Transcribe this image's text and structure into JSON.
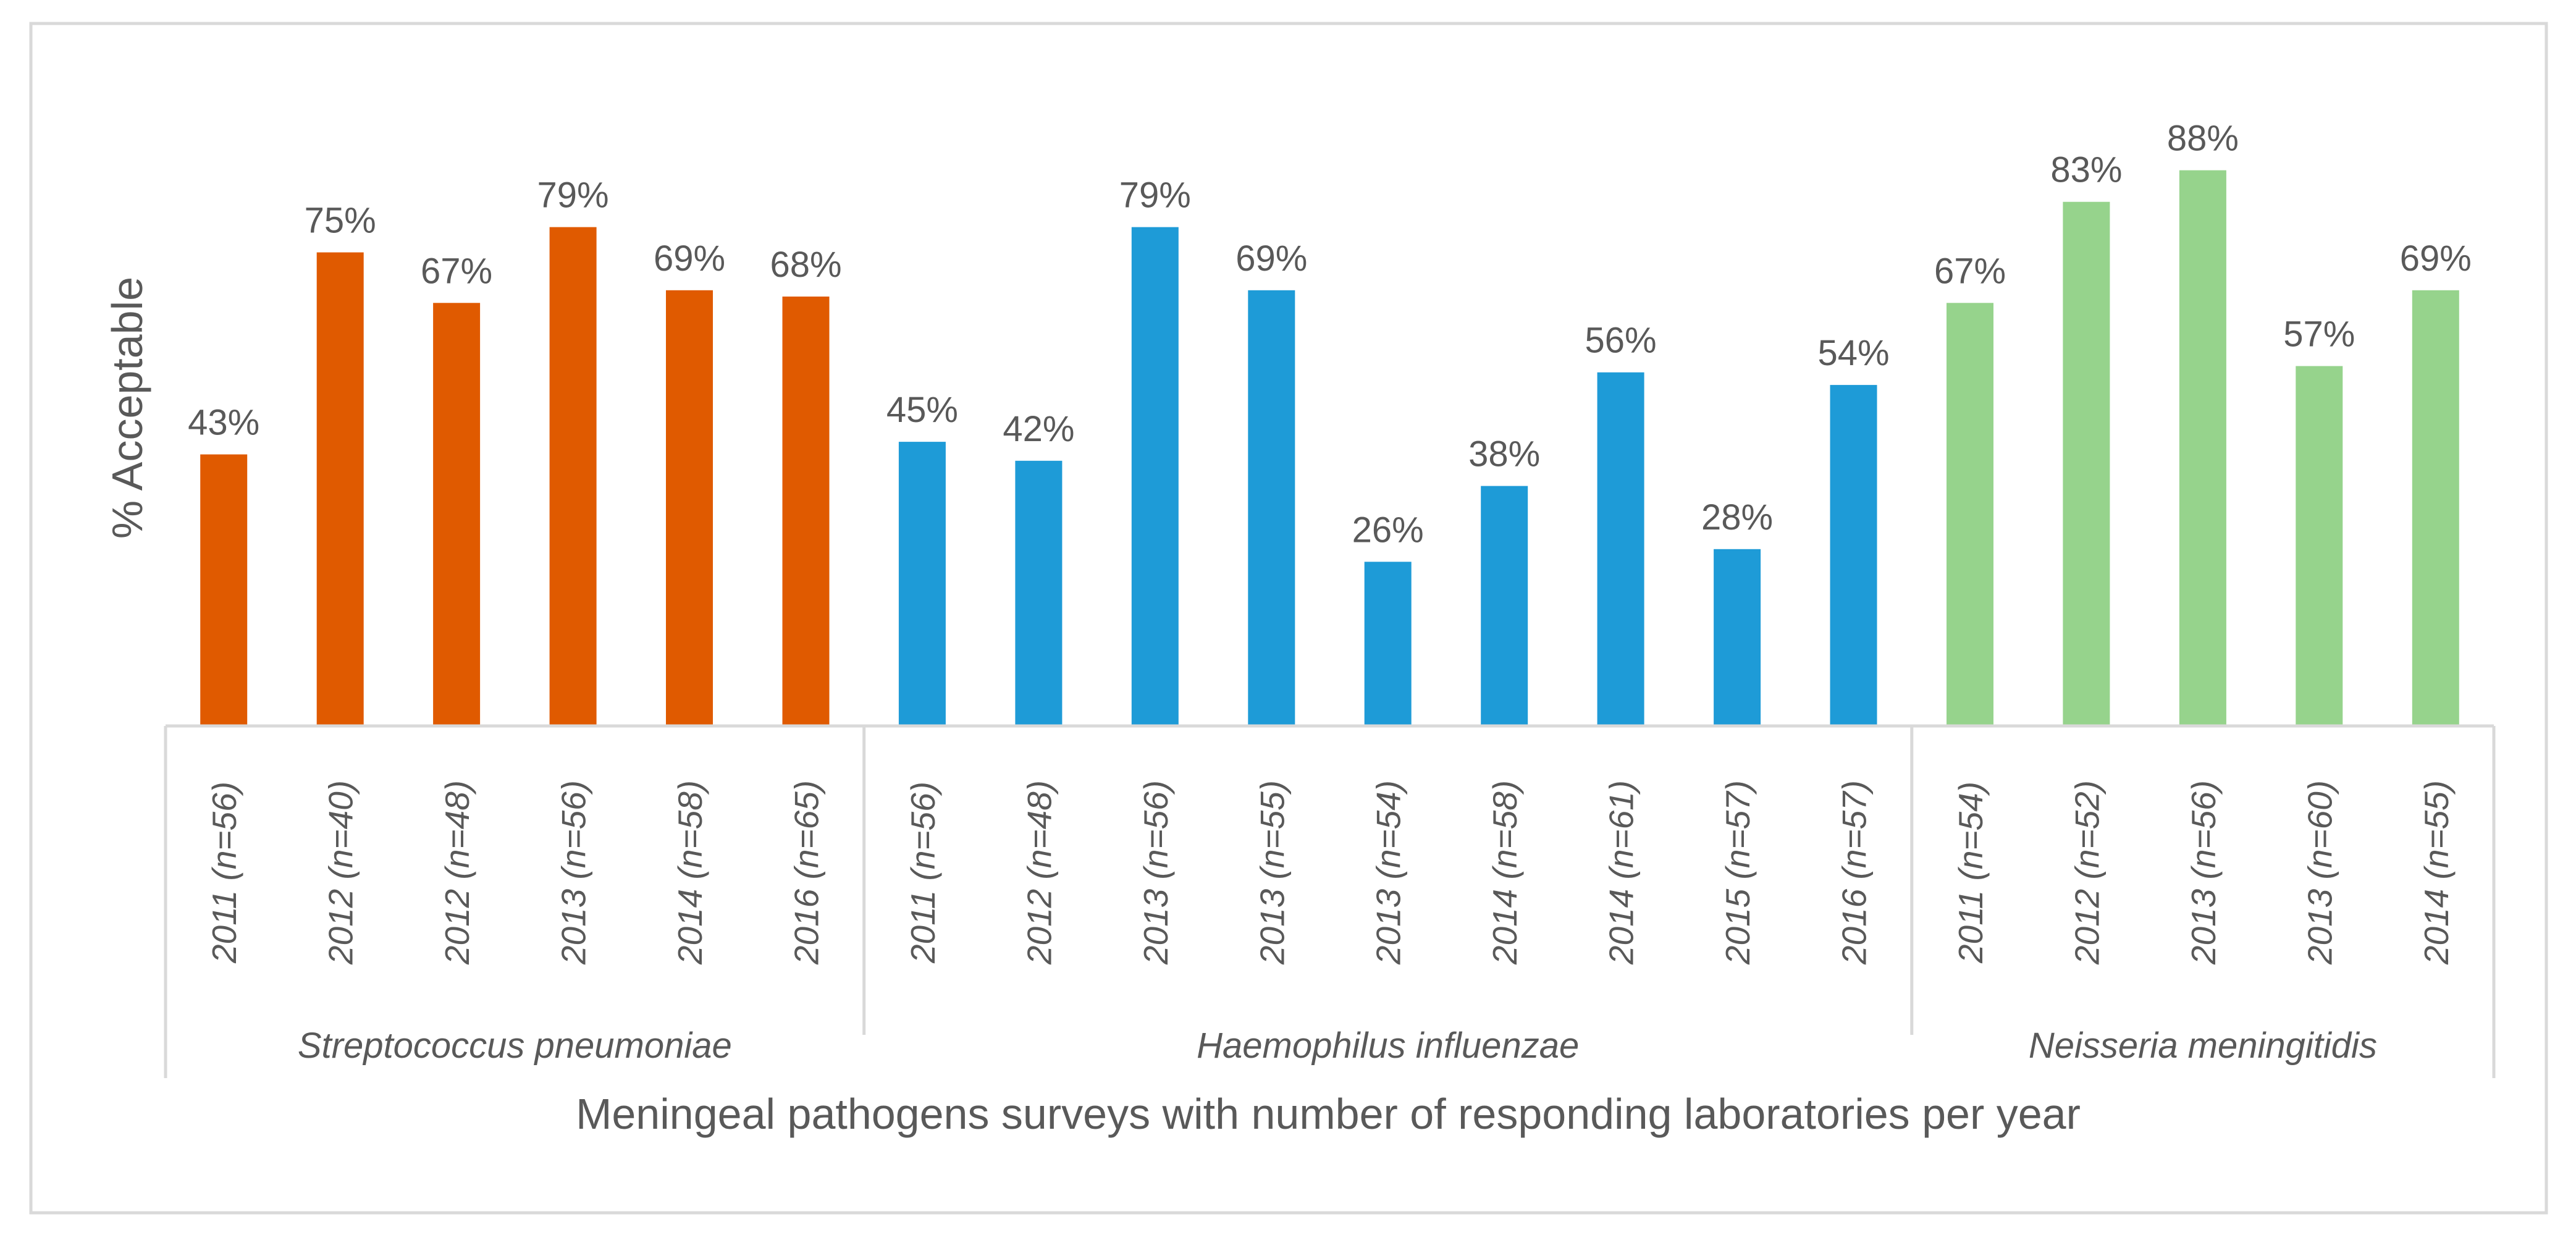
{
  "chart_data": {
    "type": "bar",
    "ylabel": "% Acceptable",
    "xlabel": "Meningeal pathogens surveys with number of  responding laboratories per year",
    "ylim": [
      0,
      100
    ],
    "grid": false,
    "value_suffix": "%",
    "groups": [
      {
        "name": "Streptococcus pneumoniae",
        "color": "#E05A00",
        "categories": [
          "2011 (n=56)",
          "2012 (n=40)",
          "2012 (n=48)",
          "2013 (n=56)",
          "2014 (n=58)",
          "2016 (n=65)"
        ],
        "values": [
          43,
          75,
          67,
          79,
          69,
          68
        ]
      },
      {
        "name": "Haemophilus influenzae",
        "color": "#1E9BD7",
        "categories": [
          "2011 (n=56)",
          "2012 (n=48)",
          "2013 (n=56)",
          "2013 (n=55)",
          "2013 (n=54)",
          "2014 (n=58)",
          "2014 (n=61)",
          "2015 (n=57)",
          "2016 (n=57)"
        ],
        "values": [
          45,
          42,
          79,
          69,
          26,
          38,
          56,
          28,
          54
        ]
      },
      {
        "name": "Neisseria meningitidis",
        "color": "#96D38C",
        "categories": [
          "2011 (n=54)",
          "2012 (n=52)",
          "2013 (n=56)",
          "2013 (n=60)",
          "2014 (n=55)"
        ],
        "values": [
          67,
          83,
          88,
          57,
          69
        ]
      }
    ]
  }
}
